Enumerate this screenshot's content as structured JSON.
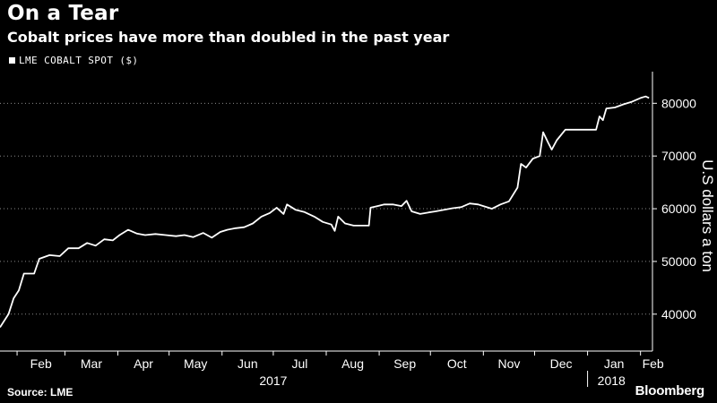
{
  "header": {
    "title": "On a Tear",
    "subtitle": "Cobalt prices have more than doubled in the past year"
  },
  "footer": {
    "source": "Source: LME",
    "brand": "Bloomberg"
  },
  "colors": {
    "background": "#000000",
    "line": "#ffffff",
    "grid": "#8a8a8a",
    "text": "#ffffff"
  },
  "chart_data": {
    "type": "line",
    "title": "On a Tear",
    "subtitle": "Cobalt prices have more than doubled in the past year",
    "ylabel": "U.S dollars a ton",
    "legend": "LME COBALT SPOT ($)",
    "legend_position": "top-left",
    "y_axis_side": "right",
    "ylim": [
      33000,
      86000
    ],
    "yticks": [
      40000,
      50000,
      60000,
      70000,
      80000
    ],
    "grid": "horizontal-dotted",
    "x_tick_labels": [
      "Feb",
      "Mar",
      "Apr",
      "May",
      "Jun",
      "Jul",
      "Aug",
      "Sep",
      "Oct",
      "Nov",
      "Dec",
      "Jan",
      "Feb"
    ],
    "x_tick_dates": [
      "2017-02-01",
      "2017-03-01",
      "2017-04-01",
      "2017-05-01",
      "2017-06-01",
      "2017-07-01",
      "2017-08-01",
      "2017-09-01",
      "2017-10-01",
      "2017-11-01",
      "2017-12-01",
      "2018-01-01",
      "2018-02-01"
    ],
    "year_labels": [
      {
        "label": "2017",
        "date": "2017-07-01"
      },
      {
        "label": "2018",
        "date": "2018-01-15"
      }
    ],
    "xlim": [
      "2017-01-22",
      "2018-02-08"
    ],
    "series": [
      {
        "name": "LME COBALT SPOT ($)",
        "points": [
          [
            "2017-01-22",
            37500
          ],
          [
            "2017-01-27",
            40000
          ],
          [
            "2017-01-30",
            43000
          ],
          [
            "2017-02-02",
            44500
          ],
          [
            "2017-02-05",
            47700
          ],
          [
            "2017-02-11",
            47700
          ],
          [
            "2017-02-14",
            50500
          ],
          [
            "2017-02-20",
            51200
          ],
          [
            "2017-02-26",
            51000
          ],
          [
            "2017-03-03",
            52500
          ],
          [
            "2017-03-09",
            52500
          ],
          [
            "2017-03-14",
            53500
          ],
          [
            "2017-03-19",
            53000
          ],
          [
            "2017-03-24",
            54200
          ],
          [
            "2017-03-29",
            54000
          ],
          [
            "2017-04-02",
            55000
          ],
          [
            "2017-04-07",
            56000
          ],
          [
            "2017-04-12",
            55300
          ],
          [
            "2017-04-17",
            55000
          ],
          [
            "2017-04-23",
            55200
          ],
          [
            "2017-04-29",
            55000
          ],
          [
            "2017-05-05",
            54800
          ],
          [
            "2017-05-10",
            55000
          ],
          [
            "2017-05-15",
            54600
          ],
          [
            "2017-05-21",
            55400
          ],
          [
            "2017-05-26",
            54500
          ],
          [
            "2017-05-31",
            55600
          ],
          [
            "2017-06-04",
            56000
          ],
          [
            "2017-06-09",
            56300
          ],
          [
            "2017-06-14",
            56500
          ],
          [
            "2017-06-19",
            57200
          ],
          [
            "2017-06-24",
            58500
          ],
          [
            "2017-06-29",
            59200
          ],
          [
            "2017-07-03",
            60200
          ],
          [
            "2017-07-07",
            59000
          ],
          [
            "2017-07-09",
            60800
          ],
          [
            "2017-07-14",
            59800
          ],
          [
            "2017-07-19",
            59400
          ],
          [
            "2017-07-25",
            58500
          ],
          [
            "2017-07-30",
            57500
          ],
          [
            "2017-08-04",
            57000
          ],
          [
            "2017-08-06",
            55800
          ],
          [
            "2017-08-08",
            58500
          ],
          [
            "2017-08-12",
            57200
          ],
          [
            "2017-08-17",
            56800
          ],
          [
            "2017-08-22",
            56800
          ],
          [
            "2017-08-26",
            56800
          ],
          [
            "2017-08-27",
            60200
          ],
          [
            "2017-08-31",
            60500
          ],
          [
            "2017-09-04",
            60800
          ],
          [
            "2017-09-09",
            60800
          ],
          [
            "2017-09-14",
            60500
          ],
          [
            "2017-09-17",
            61500
          ],
          [
            "2017-09-20",
            59500
          ],
          [
            "2017-09-25",
            59000
          ],
          [
            "2017-09-30",
            59300
          ],
          [
            "2017-10-04",
            59500
          ],
          [
            "2017-10-09",
            59800
          ],
          [
            "2017-10-14",
            60100
          ],
          [
            "2017-10-19",
            60300
          ],
          [
            "2017-10-24",
            61000
          ],
          [
            "2017-10-29",
            60800
          ],
          [
            "2017-11-01",
            60500
          ],
          [
            "2017-11-06",
            60000
          ],
          [
            "2017-11-11",
            60800
          ],
          [
            "2017-11-16",
            61400
          ],
          [
            "2017-11-21",
            64000
          ],
          [
            "2017-11-23",
            68500
          ],
          [
            "2017-11-26",
            67800
          ],
          [
            "2017-11-30",
            69500
          ],
          [
            "2017-12-04",
            70000
          ],
          [
            "2017-12-06",
            74500
          ],
          [
            "2017-12-09",
            72500
          ],
          [
            "2017-12-11",
            71200
          ],
          [
            "2017-12-14",
            73000
          ],
          [
            "2017-12-19",
            75000
          ],
          [
            "2017-12-24",
            75000
          ],
          [
            "2017-12-29",
            75000
          ],
          [
            "2018-01-03",
            75000
          ],
          [
            "2018-01-06",
            75000
          ],
          [
            "2018-01-08",
            77500
          ],
          [
            "2018-01-10",
            76800
          ],
          [
            "2018-01-12",
            79000
          ],
          [
            "2018-01-17",
            79200
          ],
          [
            "2018-01-22",
            79800
          ],
          [
            "2018-01-27",
            80300
          ],
          [
            "2018-02-01",
            81000
          ],
          [
            "2018-02-04",
            81300
          ],
          [
            "2018-02-06",
            81000
          ]
        ]
      }
    ]
  }
}
